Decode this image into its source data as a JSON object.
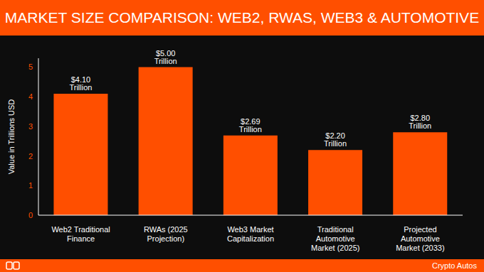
{
  "chart_data": {
    "type": "bar",
    "title": "MARKET SIZE COMPARISON: WEB2, RWAS, WEB3 & AUTOMOTIVE",
    "y_label": "Value in Trillions USD",
    "categories": [
      "Web2 Traditional Finance",
      "RWAs (2025 Projection)",
      "Web3 Market Capitalization",
      "Traditional Automotive Market (2025)",
      "Projected Automotive Market (2033)"
    ],
    "values": [
      4.1,
      5.0,
      2.69,
      2.2,
      2.8
    ],
    "value_labels": [
      "$4.10 Trillion",
      "$5.00 Trillion",
      "$2.69 Trillion",
      "$2.20 Trillion",
      "$2.80 Trillion"
    ],
    "data_labels": true,
    "color": "#ff4f00",
    "ylim": [
      0,
      5.3
    ],
    "yticks": [
      0,
      1,
      2,
      3,
      4,
      5
    ],
    "grid": false,
    "source": "Crypto Autos"
  }
}
